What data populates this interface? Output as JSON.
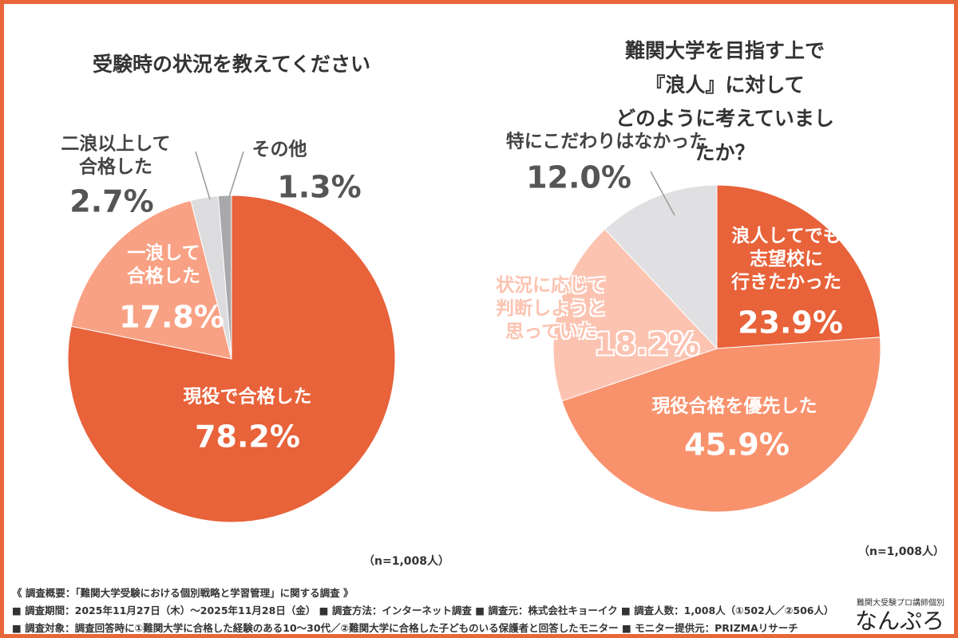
{
  "chart_data": [
    {
      "type": "pie",
      "title": "受験時の状況を教えてください",
      "categories": [
        "現役で合格した",
        "一浪して\n合格した",
        "二浪以上して\n合格した",
        "その他"
      ],
      "values": [
        78.2,
        17.8,
        2.7,
        1.3
      ],
      "value_labels": [
        "78.2%",
        "17.8%",
        "2.7%",
        "1.3%"
      ],
      "colors": [
        "#e8623a",
        "#f9a184",
        "#dcdcde",
        "#a9a9ad"
      ],
      "note": "（n=1,008人）"
    },
    {
      "type": "pie",
      "title": "難関大学を目指す上で『浪人』に対して\nどのように考えていましたか？",
      "categories": [
        "浪人してでも\n志望校に\n行きたかった",
        "現役合格を優先した",
        "状況に応じて\n判断しようと\n思っていた",
        "特にこだわりはなかった"
      ],
      "values": [
        23.9,
        45.9,
        18.2,
        12.0
      ],
      "value_labels": [
        "23.9%",
        "45.9%",
        "18.2%",
        "12.0%"
      ],
      "colors": [
        "#e8623a",
        "#f8926d",
        "#fcc3b1",
        "#e0e0e2"
      ],
      "note": "（n=1,008人）"
    }
  ],
  "footer": [
    "《 調査概要：「難関大学受験における個別戦略と学習管理」に関する調査 》",
    "■ 調査期間：2025年11月27日（木）〜2025年11月28日（金） ■ 調査方法：インターネット調査 ■ 調査元：株式会社キョーイク ■ 調査人数：1,008人（①502人／②506人）",
    "■ 調査対象：調査回答時に①難関大学に合格した経験のある10〜30代／②難関大学に合格した子どものいる保護者と回答したモニター ■ モニター提供元：PRIZMAリサーチ"
  ],
  "logo": {
    "sub": "難関大受験プロ講師個別",
    "main": "なんぷろ"
  }
}
